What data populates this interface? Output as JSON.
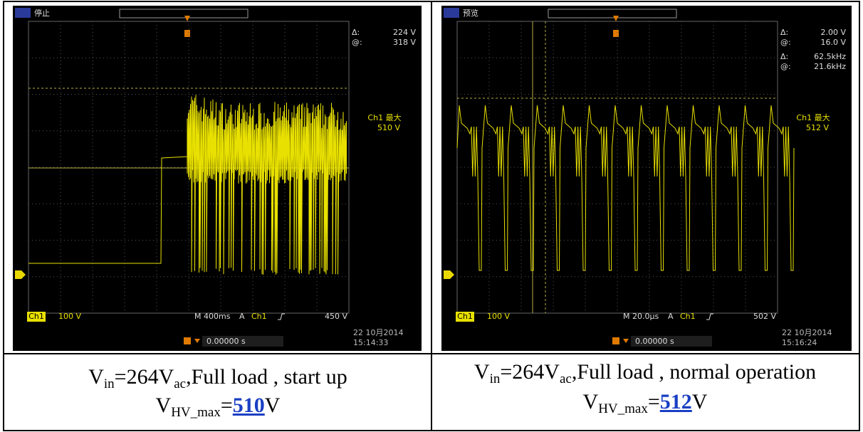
{
  "scopes": [
    {
      "status": "停止",
      "cursors": [
        {
          "label": "Δ:",
          "value": "224 V"
        },
        {
          "label": "@:",
          "value": "318 V"
        }
      ],
      "max_label": "Ch1 最大",
      "max": "510 V",
      "channel": "Ch1",
      "scale": "100 V",
      "timebase": "M 400ms",
      "trig_label": "A",
      "trig_channel": "Ch1",
      "trig_level": "450 V",
      "trig_offset": "0.00000 s",
      "date": "22 10月2014",
      "time": "15:14:33"
    },
    {
      "status": "预览",
      "cursors": [
        {
          "label": "Δ:",
          "value": "2.00 V"
        },
        {
          "label": "@:",
          "value": "16.0 V"
        },
        {
          "label": "Δ:",
          "value": "62.5kHz"
        },
        {
          "label": "@:",
          "value": "21.6kHz"
        }
      ],
      "max_label": "Ch1 最大",
      "max": "512 V",
      "channel": "Ch1",
      "scale": "100 V",
      "timebase": "M 20.0µs",
      "trig_label": "A",
      "trig_channel": "Ch1",
      "trig_level": "502 V",
      "trig_offset": "0.00000 s",
      "date": "22 10月2014",
      "time": "15:16:24"
    }
  ],
  "captions": [
    {
      "line1": [
        "V",
        "in",
        "=264V",
        "ac",
        ",Full load , start up"
      ],
      "line2": [
        "V",
        "HV_max",
        "=",
        "510",
        "V"
      ]
    },
    {
      "line1": [
        "V",
        "in",
        "=264V",
        "ac",
        ",Full load , normal operation"
      ],
      "line2": [
        "V",
        "HV_max",
        "=",
        "512",
        "V"
      ]
    }
  ]
}
